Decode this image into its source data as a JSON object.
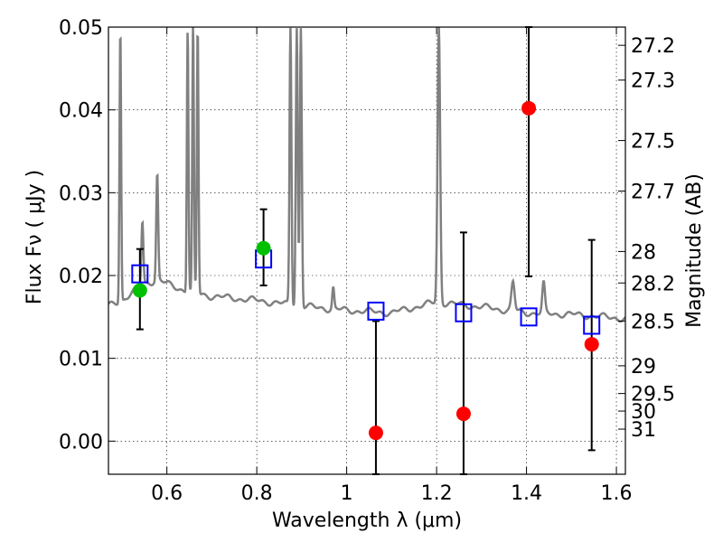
{
  "chart_data": {
    "type": "scatter",
    "xlabel": "Wavelength  λ (μm)",
    "ylabel": "Flux  Fν  ( μJy )",
    "y2label": "Magnitude (AB)",
    "xlim": [
      0.47,
      1.62
    ],
    "ylim": [
      -0.004,
      0.05
    ],
    "xticks": [
      {
        "v": 0.6,
        "label": "0.6"
      },
      {
        "v": 0.8,
        "label": "0.8"
      },
      {
        "v": 1.0,
        "label": "1"
      },
      {
        "v": 1.2,
        "label": "1.2"
      },
      {
        "v": 1.4,
        "label": "1.4"
      },
      {
        "v": 1.6,
        "label": "1.6"
      }
    ],
    "yticks": [
      {
        "v": 0.0,
        "label": "0.00"
      },
      {
        "v": 0.01,
        "label": "0.01"
      },
      {
        "v": 0.02,
        "label": "0.02"
      },
      {
        "v": 0.03,
        "label": "0.03"
      },
      {
        "v": 0.04,
        "label": "0.04"
      },
      {
        "v": 0.05,
        "label": "0.05"
      }
    ],
    "mag_ticks": [
      {
        "v": 0.0478,
        "label": "27.2"
      },
      {
        "v": 0.0436,
        "label": "27.3"
      },
      {
        "v": 0.0363,
        "label": "27.5"
      },
      {
        "v": 0.0302,
        "label": "27.7"
      },
      {
        "v": 0.0229,
        "label": "28"
      },
      {
        "v": 0.0191,
        "label": "28.2"
      },
      {
        "v": 0.0145,
        "label": "28.5"
      },
      {
        "v": 0.0091,
        "label": "29"
      },
      {
        "v": 0.00575,
        "label": "29.5"
      },
      {
        "v": 0.00363,
        "label": "30"
      },
      {
        "v": 0.00145,
        "label": "31"
      }
    ],
    "grid": true,
    "model_spectrum": {
      "color": "#808080",
      "continuum": [
        [
          0.47,
          0.0163
        ],
        [
          0.5,
          0.017
        ],
        [
          0.55,
          0.019
        ],
        [
          0.58,
          0.0195
        ],
        [
          0.6,
          0.019
        ],
        [
          0.65,
          0.018
        ],
        [
          0.7,
          0.0175
        ],
        [
          0.8,
          0.017
        ],
        [
          0.9,
          0.0163
        ],
        [
          1.0,
          0.0158
        ],
        [
          1.1,
          0.0155
        ],
        [
          1.2,
          0.0168
        ],
        [
          1.3,
          0.0162
        ],
        [
          1.4,
          0.0155
        ],
        [
          1.5,
          0.0153
        ],
        [
          1.62,
          0.0148
        ]
      ],
      "lines": [
        {
          "x": 0.4965,
          "peak": 0.05,
          "w": 0.0025
        },
        {
          "x": 0.5455,
          "peak": 0.0265,
          "w": 0.003
        },
        {
          "x": 0.5785,
          "peak": 0.0323,
          "w": 0.003
        },
        {
          "x": 0.6463,
          "peak": 0.05,
          "w": 0.0025
        },
        {
          "x": 0.6583,
          "peak": 0.05,
          "w": 0.0025
        },
        {
          "x": 0.6685,
          "peak": 0.05,
          "w": 0.0025
        },
        {
          "x": 0.875,
          "peak": 0.05,
          "w": 0.003
        },
        {
          "x": 0.889,
          "peak": 0.05,
          "w": 0.003
        },
        {
          "x": 0.898,
          "peak": 0.05,
          "w": 0.003
        },
        {
          "x": 0.97,
          "peak": 0.0185,
          "w": 0.003
        },
        {
          "x": 1.205,
          "peak": 0.05,
          "w": 0.004
        },
        {
          "x": 1.37,
          "peak": 0.0192,
          "w": 0.005
        },
        {
          "x": 1.438,
          "peak": 0.019,
          "w": 0.004
        }
      ]
    },
    "series": [
      {
        "marker": "square",
        "color": "#0000ff",
        "points": [
          [
            0.54,
            0.0202
          ],
          [
            0.815,
            0.022
          ],
          [
            1.065,
            0.0157
          ],
          [
            1.26,
            0.0155
          ],
          [
            1.405,
            0.015
          ],
          [
            1.545,
            0.014
          ]
        ]
      },
      {
        "marker": "circle",
        "color": "#00c000",
        "points": [
          [
            0.54,
            0.0182
          ],
          [
            0.815,
            0.0233
          ]
        ]
      },
      {
        "marker": "circle",
        "color": "#ff0000",
        "points": [
          [
            1.065,
            0.001
          ],
          [
            1.26,
            0.0033
          ],
          [
            1.405,
            0.0402
          ],
          [
            1.545,
            0.0117
          ]
        ]
      }
    ],
    "error_bars": [
      {
        "x": 0.54,
        "low": 0.0135,
        "high": 0.0232
      },
      {
        "x": 0.815,
        "low": 0.0188,
        "high": 0.028
      },
      {
        "x": 1.065,
        "low": -0.004,
        "high": 0.0145
      },
      {
        "x": 1.26,
        "low": -0.004,
        "high": 0.0252
      },
      {
        "x": 1.405,
        "low": 0.0199,
        "high": 0.05
      },
      {
        "x": 1.545,
        "low": -0.0011,
        "high": 0.0243
      }
    ]
  }
}
